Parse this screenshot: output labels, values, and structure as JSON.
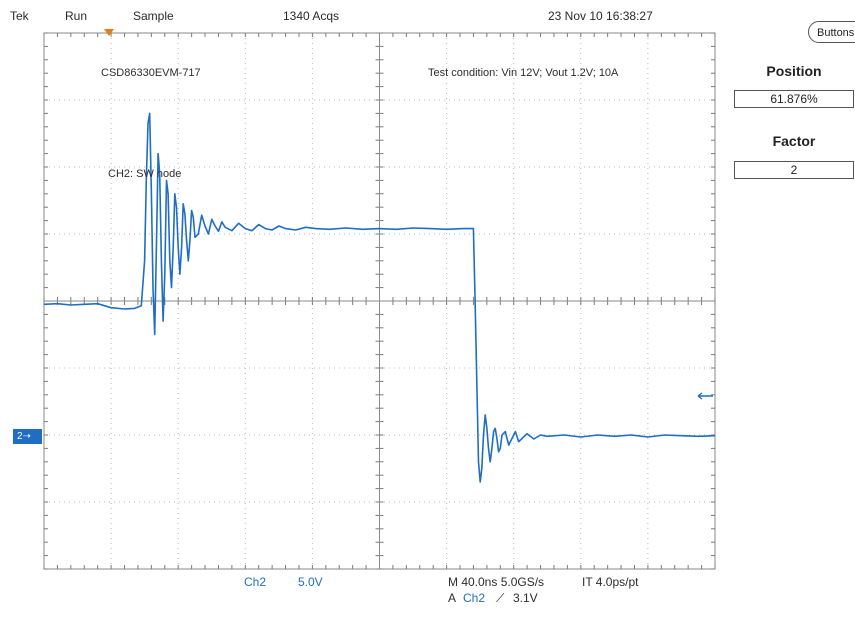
{
  "top_bar": {
    "brand": "Tek",
    "state": "Run",
    "mode": "Sample",
    "acqs": "1340 Acqs",
    "datetime": "23 Nov 10 16:38:27"
  },
  "annotations": {
    "board": "CSD86330EVM-717",
    "condition": "Test condition: Vin 12V; Vout 1.2V; 10A",
    "channel_label": "CH2: SW node"
  },
  "channel_marker": "2",
  "bottom": {
    "ch_name": "Ch2",
    "ch_scale": "5.0V",
    "timebase": "M 40.0ns 5.0GS/s",
    "record": "IT 4.0ps/pt",
    "trigger_prefix": "A",
    "trigger_ch": "Ch2",
    "trigger_slope": "⟋",
    "trigger_level": "3.1V"
  },
  "panel": {
    "buttons_label": "Buttons",
    "position_title": "Position",
    "position_value": "61.876%",
    "factor_title": "Factor",
    "factor_value": "2"
  },
  "colors": {
    "trace": "#1f6ec4",
    "grid": "#b8b8b8",
    "trigger_marker": "#e87a1e"
  },
  "chart_data": {
    "type": "line",
    "title": "",
    "xlabel": "",
    "ylabel": "",
    "xlim": [
      0,
      400
    ],
    "ylim": [
      -4,
      4
    ],
    "grid": true,
    "x_unit": "ns",
    "y_unit": "V",
    "series": [
      {
        "values": [
          [
            0,
            -0.05
          ],
          [
            8,
            -0.04
          ],
          [
            16,
            -0.06
          ],
          [
            24,
            -0.05
          ],
          [
            32,
            -0.04
          ],
          [
            40,
            -0.1
          ],
          [
            48,
            -0.12
          ],
          [
            54,
            -0.11
          ],
          [
            58,
            -0.07
          ],
          [
            60,
            0.6
          ],
          [
            61,
            1.8
          ],
          [
            62,
            2.65
          ],
          [
            63,
            2.8
          ],
          [
            64,
            1.6
          ],
          [
            65,
            0.2
          ],
          [
            66,
            -0.5
          ],
          [
            67,
            0.8
          ],
          [
            68,
            2.2
          ],
          [
            69,
            1.9
          ],
          [
            70,
            0.6
          ],
          [
            71,
            -0.3
          ],
          [
            72,
            0.4
          ],
          [
            73,
            1.8
          ],
          [
            74,
            1.6
          ],
          [
            75,
            0.6
          ],
          [
            76,
            0.2
          ],
          [
            77,
            0.8
          ],
          [
            78,
            1.6
          ],
          [
            79,
            1.4
          ],
          [
            80,
            0.8
          ],
          [
            81,
            0.4
          ],
          [
            82,
            0.8
          ],
          [
            83,
            1.45
          ],
          [
            84,
            1.3
          ],
          [
            85,
            0.9
          ],
          [
            86,
            0.6
          ],
          [
            87,
            0.9
          ],
          [
            88,
            1.35
          ],
          [
            89,
            1.25
          ],
          [
            90,
            0.95
          ],
          [
            92,
            1.0
          ],
          [
            94,
            1.28
          ],
          [
            96,
            1.12
          ],
          [
            98,
            1.0
          ],
          [
            100,
            1.22
          ],
          [
            102,
            1.12
          ],
          [
            104,
            1.04
          ],
          [
            106,
            1.18
          ],
          [
            108,
            1.1
          ],
          [
            112,
            1.05
          ],
          [
            116,
            1.16
          ],
          [
            120,
            1.08
          ],
          [
            124,
            1.05
          ],
          [
            128,
            1.14
          ],
          [
            132,
            1.08
          ],
          [
            136,
            1.06
          ],
          [
            140,
            1.12
          ],
          [
            144,
            1.08
          ],
          [
            150,
            1.06
          ],
          [
            156,
            1.1
          ],
          [
            162,
            1.08
          ],
          [
            170,
            1.07
          ],
          [
            180,
            1.09
          ],
          [
            190,
            1.07
          ],
          [
            200,
            1.08
          ],
          [
            210,
            1.07
          ],
          [
            220,
            1.09
          ],
          [
            230,
            1.08
          ],
          [
            240,
            1.07
          ],
          [
            250,
            1.08
          ],
          [
            256,
            1.08
          ],
          [
            257,
            0.0
          ],
          [
            258,
            -1.2
          ],
          [
            259,
            -2.4
          ],
          [
            260,
            -2.7
          ],
          [
            261,
            -2.5
          ],
          [
            262,
            -2.0
          ],
          [
            263,
            -1.7
          ],
          [
            264,
            -1.9
          ],
          [
            265,
            -2.2
          ],
          [
            266,
            -2.4
          ],
          [
            267,
            -2.2
          ],
          [
            268,
            -1.95
          ],
          [
            269,
            -1.9
          ],
          [
            270,
            -2.05
          ],
          [
            271,
            -2.25
          ],
          [
            272,
            -2.2
          ],
          [
            273,
            -2.0
          ],
          [
            275,
            -1.95
          ],
          [
            277,
            -2.15
          ],
          [
            279,
            -2.05
          ],
          [
            281,
            -1.95
          ],
          [
            283,
            -2.1
          ],
          [
            285,
            -2.05
          ],
          [
            288,
            -1.98
          ],
          [
            292,
            -2.06
          ],
          [
            296,
            -2.0
          ],
          [
            300,
            -2.02
          ],
          [
            310,
            -2.0
          ],
          [
            320,
            -2.03
          ],
          [
            330,
            -2.0
          ],
          [
            340,
            -2.02
          ],
          [
            350,
            -2.0
          ],
          [
            360,
            -2.03
          ],
          [
            370,
            -2.0
          ],
          [
            380,
            -2.01
          ],
          [
            390,
            -2.02
          ],
          [
            400,
            -2.01
          ]
        ]
      }
    ]
  }
}
